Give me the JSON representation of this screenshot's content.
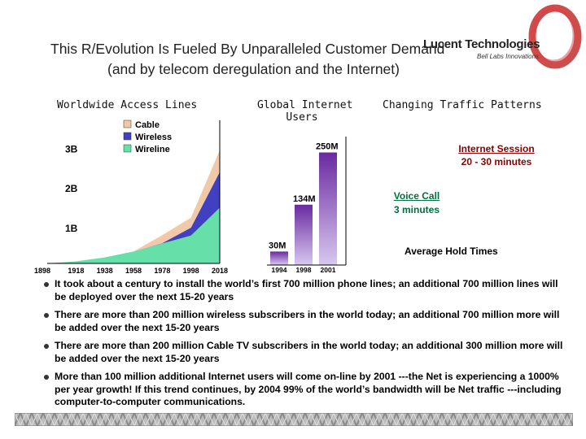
{
  "slide": {
    "title_line1": "This R/Evolution Is Fueled By Unparalleled Customer Demand",
    "title_line2": "(and by telecom deregulation and the Internet)",
    "logo_line1": "Lucent Technologies",
    "logo_line2": "Bell Labs Innovations",
    "colors": {
      "cable": "#f2c9a8",
      "wireless": "#4040c0",
      "wireline": "#66e0a8",
      "bar": "#6a2aa0",
      "internet_text": "#8b0000",
      "voice_text": "#007040"
    }
  },
  "headings": {
    "access": "Worldwide Access Lines",
    "users_line1": "Global Internet",
    "users_line2": "Users",
    "traffic": "Changing Traffic Patterns"
  },
  "traffic": {
    "internet_label": "Internet Session",
    "internet_value": "20 - 30 minutes",
    "voice_label": "Voice Call",
    "voice_value": "3 minutes",
    "hold_label": "Average Hold Times"
  },
  "chart_data": [
    {
      "type": "area",
      "title": "Worldwide Access Lines",
      "x": [
        1898,
        1918,
        1938,
        1958,
        1978,
        1998,
        2018
      ],
      "x_tick_labels": [
        "1898",
        "1918",
        "1938",
        "1958",
        "1978",
        "1998",
        "2018"
      ],
      "y_tick_labels": [
        "1B",
        "2B",
        "3B"
      ],
      "ylim": [
        0,
        3.6
      ],
      "stacked": true,
      "series": [
        {
          "name": "Wireline",
          "values": [
            0,
            0.05,
            0.15,
            0.3,
            0.5,
            0.7,
            1.4
          ]
        },
        {
          "name": "Wireless",
          "values": [
            0,
            0,
            0,
            0,
            0.01,
            0.2,
            0.9
          ]
        },
        {
          "name": "Cable",
          "values": [
            0,
            0,
            0,
            0,
            0.2,
            0.25,
            0.55
          ]
        }
      ],
      "legend": [
        "Cable",
        "Wireless",
        "Wireline"
      ]
    },
    {
      "type": "bar",
      "title": "Global Internet Users",
      "categories": [
        "1994",
        "1998",
        "2001"
      ],
      "values": [
        30,
        134,
        250
      ],
      "data_labels": [
        "30M",
        "134M",
        "250M"
      ],
      "ylim": [
        0,
        260
      ]
    }
  ],
  "bullets": [
    "It took about a century to install the world’s first 700 million phone lines;  an additional 700 million lines will be deployed over the next 15-20 years",
    "There are more than 200 million wireless subscribers in the world today; an additional 700 million more will be added over the next 15-20 years",
    "There are more than 200 million Cable TV subscribers in the world today; an additional 300 million more will be added over the next 15-20 years",
    "More than 100 million additional Internet users will come on-line by 2001 ---the Net is experiencing a 1000% per year growth! If this trend continues, by 2004 99% of the world’s bandwidth will be Net traffic ---including computer-to-computer communications."
  ]
}
